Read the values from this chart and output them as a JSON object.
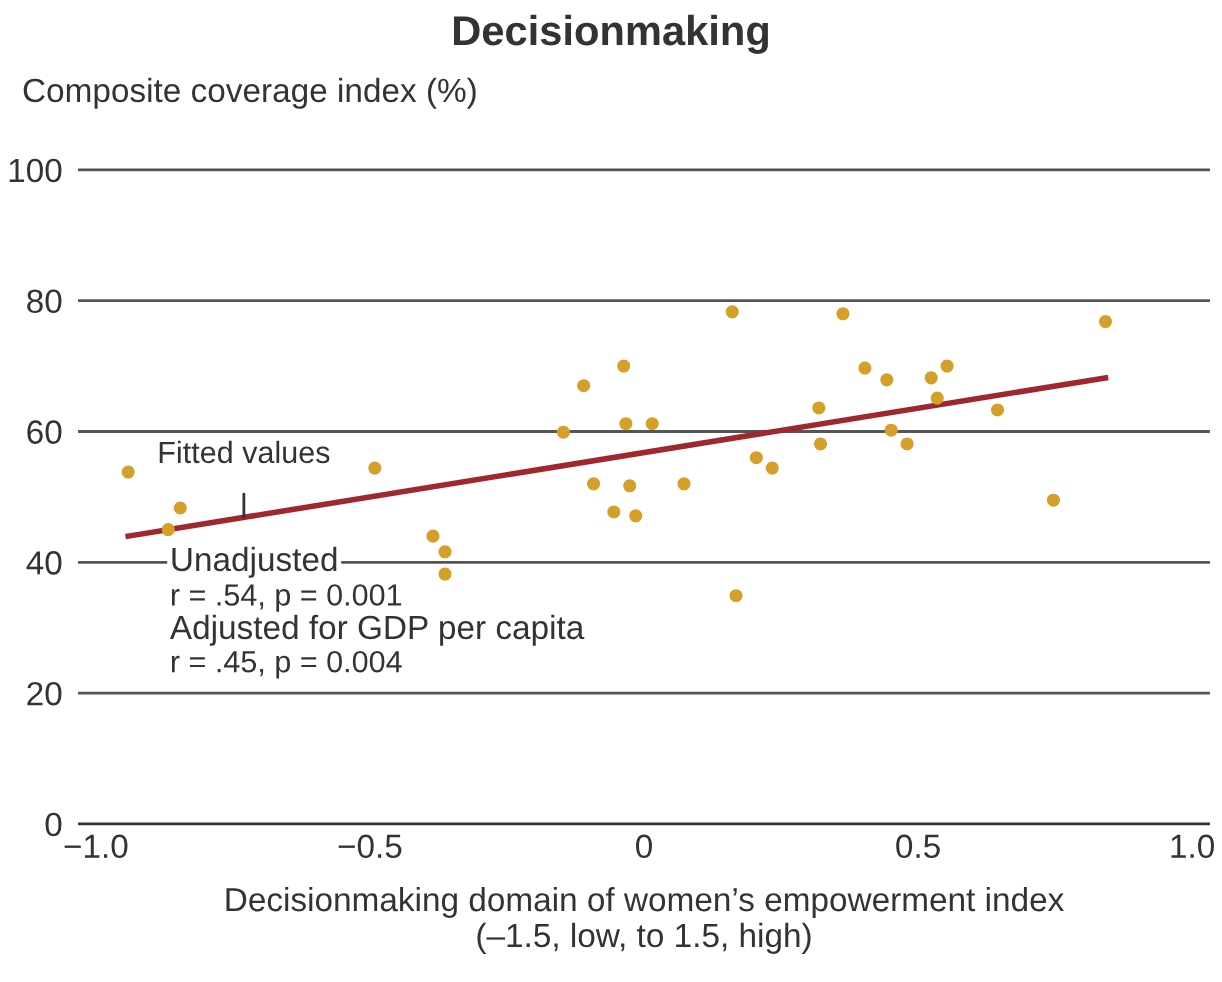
{
  "chart_data": {
    "type": "scatter",
    "title": "Decisionmaking",
    "ylabel": "Composite coverage index (%)",
    "xlabel": "Decisionmaking domain of women’s empowerment index\n(–1.5, low, to 1.5, high)",
    "series": [
      {
        "color": "#d4a02a",
        "marker": "circle",
        "x": [
          -0.941,
          -0.846,
          -0.868,
          -0.491,
          -0.385,
          -0.363,
          -0.363,
          -0.147,
          -0.11,
          -0.037,
          -0.033,
          0.015,
          -0.092,
          -0.055,
          -0.026,
          -0.015,
          0.073,
          0.161,
          0.168,
          0.205,
          0.234,
          0.363,
          0.319,
          0.322,
          0.403,
          0.443,
          0.451,
          0.48,
          0.524,
          0.535,
          0.553,
          0.645,
          0.747,
          0.842
        ],
        "values": [
          53.8,
          48.3,
          45.0,
          54.4,
          44.0,
          41.6,
          38.2,
          59.9,
          67.0,
          70.0,
          61.2,
          61.2,
          52.0,
          47.7,
          51.7,
          47.1,
          52.0,
          78.3,
          34.9,
          56.0,
          54.4,
          78.0,
          63.6,
          58.1,
          69.7,
          67.9,
          60.2,
          58.1,
          68.2,
          65.1,
          70.0,
          63.3,
          49.5,
          76.8
        ]
      },
      {
        "type": "line",
        "color": "#a0282d",
        "line_style": "solid",
        "marker": "none",
        "x": [
          -0.941,
          0.842
        ],
        "values": [
          44.0,
          68.2
        ]
      }
    ],
    "annotations": [
      {
        "text": "Fitted values",
        "x": -0.73,
        "y": 46.9
      },
      "Unadjusted",
      "r = .54, p = 0.001",
      "Adjusted for GDP per capita",
      "r = .45, p = 0.004"
    ],
    "xlim": [
      -1.03,
      1.03
    ],
    "ylim": [
      0,
      100
    ],
    "xticks": [
      {
        "value": -1.0,
        "label": "−1.0"
      },
      {
        "value": -0.5,
        "label": "−0.5"
      },
      0,
      {
        "value": 0.5,
        "label": "0.5"
      },
      {
        "value": 1.0,
        "label": "1.0"
      }
    ],
    "yticks": [
      0,
      20,
      40,
      60,
      80,
      100
    ],
    "grid": "y",
    "legend": false
  }
}
